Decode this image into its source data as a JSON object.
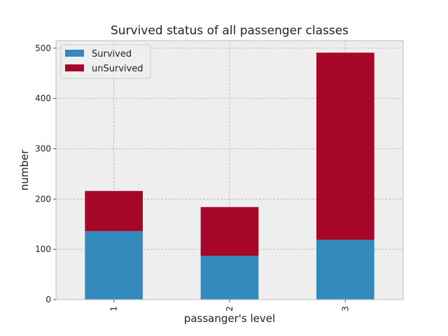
{
  "chart_data": {
    "type": "bar",
    "stacked": true,
    "title": "Survived status of all passenger classes",
    "xlabel": "passanger's level",
    "ylabel": "number",
    "categories": [
      "1",
      "2",
      "3"
    ],
    "series": [
      {
        "name": "Survived",
        "values": [
          136,
          87,
          119
        ],
        "color": "#348abd"
      },
      {
        "name": "unSurvived",
        "values": [
          80,
          97,
          372
        ],
        "color": "#a60628"
      }
    ],
    "ylim": [
      0,
      515
    ],
    "yticks": [
      0,
      100,
      200,
      300,
      400,
      500
    ],
    "grid": true,
    "legend_position": "top-left",
    "plot_background": "#eeeeee"
  }
}
